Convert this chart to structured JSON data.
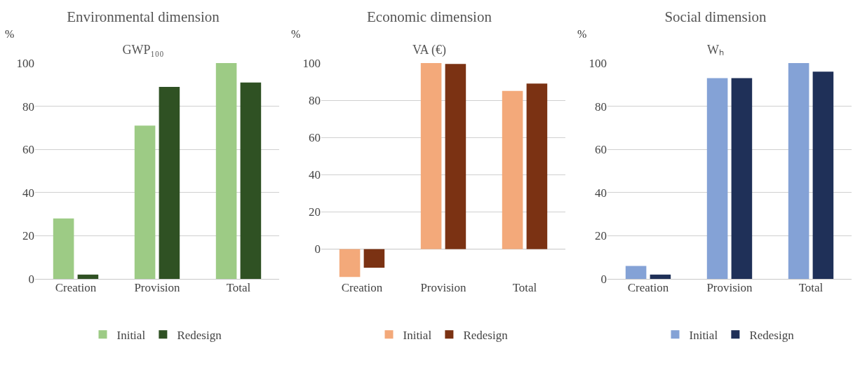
{
  "chart_data": [
    {
      "type": "bar",
      "title": "Environmental dimension",
      "subtitle": "GWP₁₀₀",
      "ylabel": "%",
      "categories": [
        "Creation",
        "Provision",
        "Total"
      ],
      "ylim": [
        0,
        100
      ],
      "yticks": [
        0,
        20,
        40,
        60,
        80,
        100
      ],
      "grid": "y",
      "legend": "bottom",
      "series": [
        {
          "name": "Initial",
          "color": "#9dcb85",
          "values": [
            28,
            71,
            100
          ]
        },
        {
          "name": "Redesign",
          "color": "#2f5123",
          "values": [
            2,
            89,
            91
          ]
        }
      ]
    },
    {
      "type": "bar",
      "title": "Economic dimension",
      "subtitle": "VA (€)",
      "ylabel": "%",
      "categories": [
        "Creation",
        "Provision",
        "Total"
      ],
      "ylim": [
        -16,
        100
      ],
      "yticks": [
        0,
        20,
        40,
        60,
        80,
        100
      ],
      "grid": "y",
      "legend": "bottom",
      "series": [
        {
          "name": "Initial",
          "color": "#f3a97a",
          "values": [
            -15,
            100,
            85
          ]
        },
        {
          "name": "Redesign",
          "color": "#7b3213",
          "values": [
            -10,
            99.5,
            89
          ]
        }
      ]
    },
    {
      "type": "bar",
      "title": "Social dimension",
      "subtitle": "Wₕ",
      "ylabel": "%",
      "categories": [
        "Creation",
        "Provision",
        "Total"
      ],
      "ylim": [
        0,
        100
      ],
      "yticks": [
        0,
        20,
        40,
        60,
        80,
        100
      ],
      "grid": "y",
      "legend": "bottom",
      "series": [
        {
          "name": "Initial",
          "color": "#84a2d6",
          "values": [
            6,
            93,
            100
          ]
        },
        {
          "name": "Redesign",
          "color": "#1f3058",
          "values": [
            2,
            93,
            96
          ]
        }
      ]
    }
  ]
}
